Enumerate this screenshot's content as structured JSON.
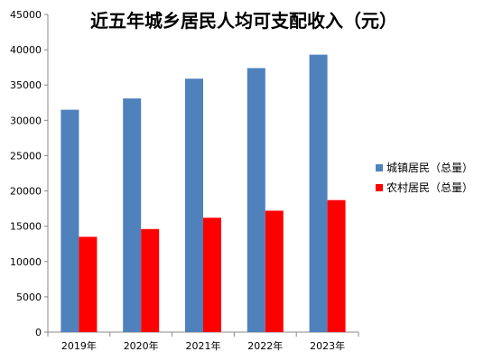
{
  "chart_data": {
    "type": "bar",
    "title": "近五年城乡居民人均可支配收入（元）",
    "categories": [
      "2019年",
      "2020年",
      "2021年",
      "2022年",
      "2023年"
    ],
    "series": [
      {
        "name": "城镇居民（总量）",
        "color": "#4F81BD",
        "values": [
          31500,
          33100,
          35900,
          37400,
          39300
        ]
      },
      {
        "name": "农村居民（总量）",
        "color": "#FF0000",
        "values": [
          13500,
          14600,
          16200,
          17200,
          18700
        ]
      }
    ],
    "ylim": [
      0,
      45000
    ],
    "yticks": [
      0,
      5000,
      10000,
      15000,
      20000,
      25000,
      30000,
      35000,
      40000,
      45000
    ],
    "grid": false,
    "legend_position": "right"
  }
}
